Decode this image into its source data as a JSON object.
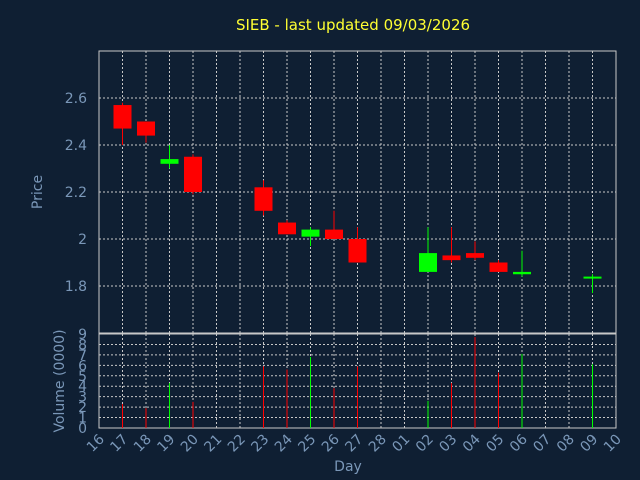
{
  "chart_data": {
    "type": "candlestick",
    "title": "SIEB - last updated 09/03/2026",
    "xlabel": "Day",
    "price_panel": {
      "ylabel": "Price",
      "ylim": [
        1.6,
        2.8
      ],
      "yticks": [
        "1.8",
        "2",
        "2.2",
        "2.4",
        "2.6"
      ]
    },
    "volume_panel": {
      "ylabel": "Volume (0000)",
      "ylim": [
        0,
        9
      ],
      "yticks": [
        "0",
        "1",
        "2",
        "3",
        "4",
        "5",
        "6",
        "7",
        "8",
        "9"
      ]
    },
    "x_ticks": [
      "16",
      "17",
      "18",
      "19",
      "20",
      "21",
      "22",
      "23",
      "24",
      "25",
      "26",
      "27",
      "28",
      "01",
      "02",
      "03",
      "04",
      "05",
      "06",
      "07",
      "08",
      "09",
      "10"
    ],
    "grid": true,
    "colors": {
      "up": "#00ff00",
      "down": "#ff0000",
      "grid": "#c8c8c8",
      "title": "#ffff33",
      "text": "#7a97b8"
    },
    "candles": [
      {
        "day": "17",
        "open": 2.57,
        "high": 2.58,
        "low": 2.4,
        "close": 2.47,
        "volume": 2.3
      },
      {
        "day": "18",
        "open": 2.5,
        "high": 2.5,
        "low": 2.41,
        "close": 2.44,
        "volume": 1.9
      },
      {
        "day": "19",
        "open": 2.32,
        "high": 2.4,
        "low": 2.3,
        "close": 2.34,
        "volume": 4.3
      },
      {
        "day": "20",
        "open": 2.35,
        "high": 2.36,
        "low": 2.19,
        "close": 2.2,
        "volume": 2.5
      },
      {
        "day": "23",
        "open": 2.22,
        "high": 2.25,
        "low": 2.1,
        "close": 2.12,
        "volume": 5.9
      },
      {
        "day": "24",
        "open": 2.07,
        "high": 2.08,
        "low": 2.02,
        "close": 2.02,
        "volume": 5.6
      },
      {
        "day": "25",
        "open": 2.01,
        "high": 2.05,
        "low": 1.97,
        "close": 2.04,
        "volume": 6.8
      },
      {
        "day": "26",
        "open": 2.04,
        "high": 2.12,
        "low": 2.0,
        "close": 2.0,
        "volume": 3.8
      },
      {
        "day": "27",
        "open": 2.0,
        "high": 2.05,
        "low": 1.9,
        "close": 1.9,
        "volume": 5.9
      },
      {
        "day": "02",
        "open": 1.86,
        "high": 2.05,
        "low": 1.86,
        "close": 1.94,
        "volume": 2.6
      },
      {
        "day": "03",
        "open": 1.93,
        "high": 2.05,
        "low": 1.9,
        "close": 1.91,
        "volume": 4.3
      },
      {
        "day": "04",
        "open": 1.94,
        "high": 1.99,
        "low": 1.91,
        "close": 1.92,
        "volume": 8.7
      },
      {
        "day": "05",
        "open": 1.9,
        "high": 1.91,
        "low": 1.86,
        "close": 1.86,
        "volume": 5.3
      },
      {
        "day": "06",
        "open": 1.85,
        "high": 1.95,
        "low": 1.84,
        "close": 1.86,
        "volume": 7.1
      },
      {
        "day": "09",
        "open": 1.84,
        "high": 1.85,
        "low": 1.77,
        "close": 1.84,
        "volume": 6.1
      }
    ]
  }
}
